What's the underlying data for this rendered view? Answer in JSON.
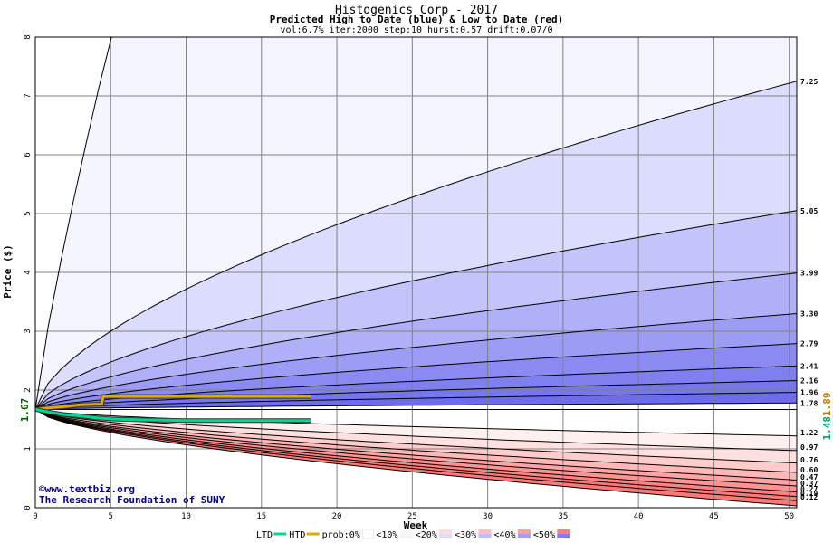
{
  "chart_data": {
    "type": "area",
    "title": "Histogenics Corp - 2017",
    "subtitle": "Predicted High to Date (blue) &  Low to Date (red)",
    "params": "vol:6.7% iter:2000 step:10 hurst:0.57 drift:0.07/0",
    "xlabel": "Week",
    "ylabel": "Price ($)",
    "xlim": [
      0,
      50.5
    ],
    "ylim": [
      0,
      8
    ],
    "x_ticks": [
      0,
      5,
      10,
      15,
      20,
      25,
      30,
      35,
      40,
      45,
      50
    ],
    "y_ticks": [
      0,
      1,
      2,
      3,
      4,
      5,
      6,
      7,
      8
    ],
    "grid": true,
    "current_price_label": "1.67",
    "current_price": 1.67,
    "right_axis_label": "1.48",
    "right_axis_label2": "1.89",
    "credit": [
      "©www.textbiz.org",
      "The Research Foundation of SUNY"
    ],
    "high_curves": [
      {
        "label": "",
        "end": 8.0,
        "steep": true
      },
      {
        "label": "7.25",
        "end": 7.25
      },
      {
        "label": "5.05",
        "end": 5.05
      },
      {
        "label": "3.99",
        "end": 3.99
      },
      {
        "label": "3.30",
        "end": 3.3
      },
      {
        "label": "2.79",
        "end": 2.79
      },
      {
        "label": "2.41",
        "end": 2.41
      },
      {
        "label": "2.16",
        "end": 2.16
      },
      {
        "label": "1.96",
        "end": 1.96
      },
      {
        "label": "1.78",
        "end": 1.78
      }
    ],
    "low_curves": [
      {
        "label": "1.22",
        "end": 1.22
      },
      {
        "label": "0.97",
        "end": 0.97
      },
      {
        "label": "0.76",
        "end": 0.76
      },
      {
        "label": "0.60",
        "end": 0.6
      },
      {
        "label": "0.47",
        "end": 0.47
      },
      {
        "label": "0.37",
        "end": 0.37
      },
      {
        "label": "0.27",
        "end": 0.27
      },
      {
        "label": "0.19",
        "end": 0.19
      },
      {
        "label": "0.12",
        "end": 0.12
      },
      {
        "label": "",
        "end": 0.03
      }
    ],
    "htd_series": {
      "name": "HTD",
      "color": "#e0a800",
      "x": [
        0,
        1,
        2,
        3,
        4,
        4.4,
        4.5,
        5,
        8,
        12,
        15,
        18.3
      ],
      "y": [
        1.67,
        1.7,
        1.72,
        1.75,
        1.76,
        1.76,
        1.89,
        1.89,
        1.89,
        1.89,
        1.89,
        1.89
      ]
    },
    "ltd_series": {
      "name": "LTD",
      "color": "#00d890",
      "x": [
        0,
        1,
        2,
        3,
        4,
        5,
        6,
        8,
        10,
        12,
        15,
        18.3
      ],
      "y": [
        1.67,
        1.62,
        1.58,
        1.56,
        1.53,
        1.51,
        1.5,
        1.49,
        1.48,
        1.48,
        1.48,
        1.48
      ]
    },
    "legend": [
      {
        "label": "LTD",
        "color": "#00d890",
        "kind": "line"
      },
      {
        "label": "HTD",
        "color": "#e0a800",
        "kind": "line"
      },
      {
        "label": "prob:0%",
        "color": "#ffffff",
        "kind": "text"
      },
      {
        "label": "<10%",
        "color": "#f4f4ff",
        "color2": "#fff4f4",
        "kind": "swatch"
      },
      {
        "label": "<20%",
        "color": "#dcdcfc",
        "color2": "#ffdcdc",
        "kind": "swatch"
      },
      {
        "label": "<30%",
        "color": "#bfbff8",
        "color2": "#ffbfbf",
        "kind": "swatch"
      },
      {
        "label": "<40%",
        "color": "#9f9ff4",
        "color2": "#ff9f9f",
        "kind": "swatch"
      },
      {
        "label": "<50%",
        "color": "#7f7ff0",
        "color2": "#ff7f7f",
        "kind": "swatch"
      }
    ],
    "band_colors_blue": [
      "#f4f4ff",
      "#dcdcfc",
      "#c4c4fa",
      "#b0b0f8",
      "#9c9cf4",
      "#8a8af2",
      "#7f7ff0",
      "#7676ee",
      "#6c6cec"
    ],
    "band_colors_red": [
      "#fff0f0",
      "#ffe0e0",
      "#ffcccc",
      "#ffb8b8",
      "#ffa4a4",
      "#ff9292",
      "#ff8282",
      "#ff7878"
    ]
  }
}
